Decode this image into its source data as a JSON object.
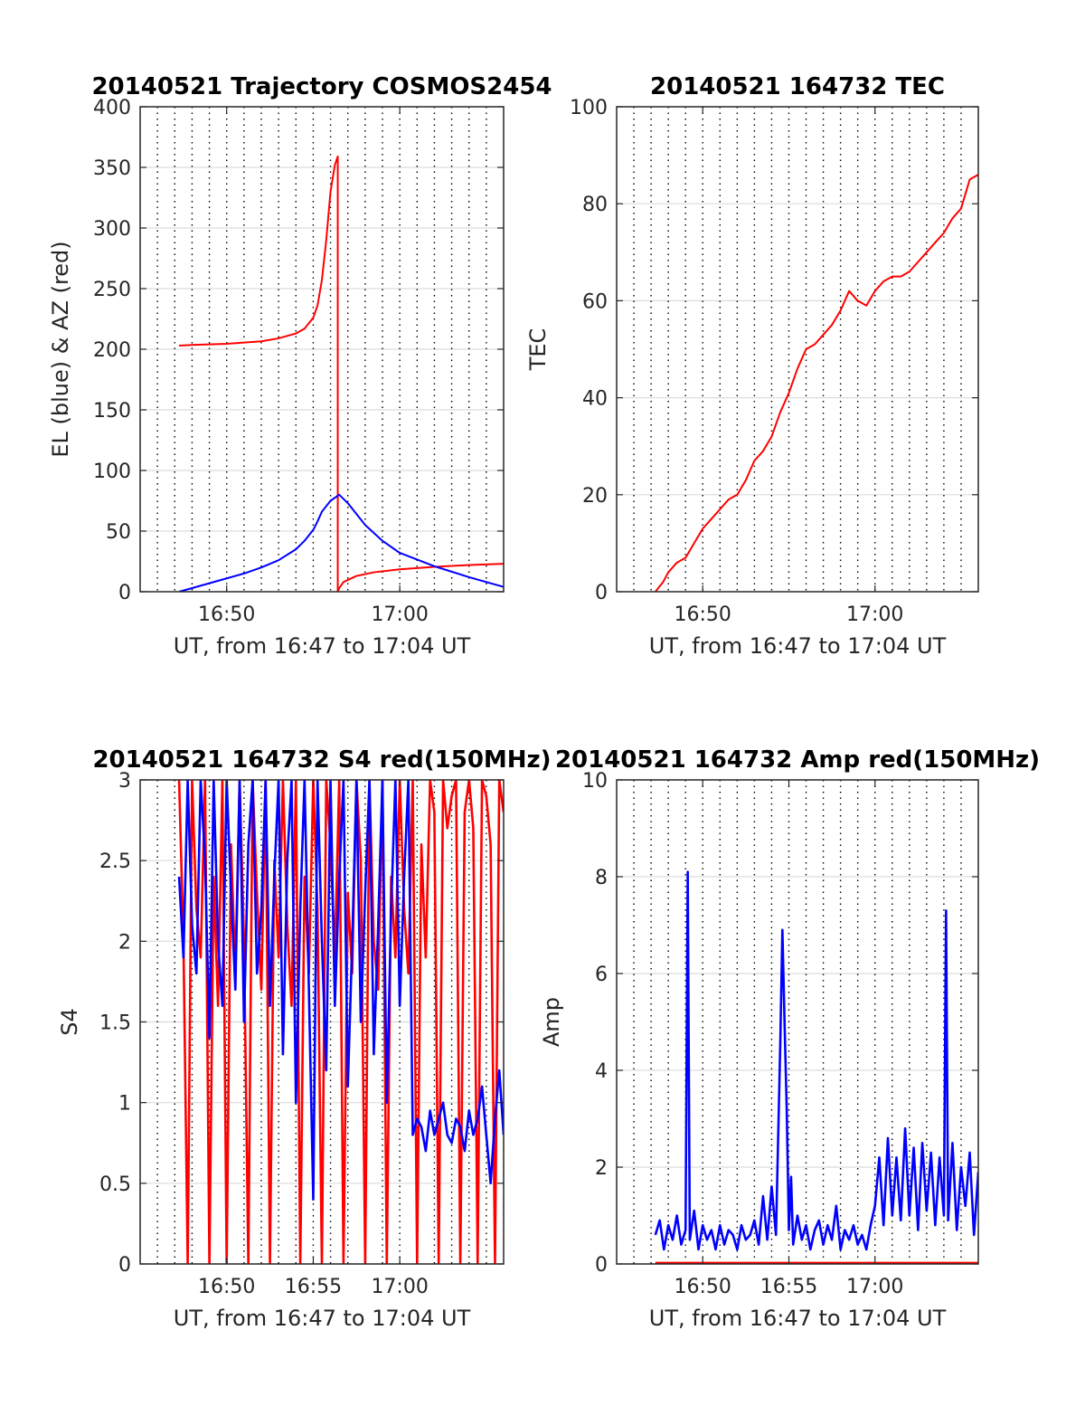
{
  "chart_data": [
    {
      "type": "line",
      "title": "20140521 Trajectory COSMOS2454",
      "xlabel": "UT, from 16:47 to 17:04 UT",
      "ylabel": "EL (blue) & AZ (red)",
      "xlim": [
        16.75,
        17.1
      ],
      "ylim": [
        0,
        400
      ],
      "xticks": [
        {
          "value": 16.8333,
          "label": "16:50"
        },
        {
          "value": 17.0,
          "label": "17:00"
        }
      ],
      "yticks": [
        {
          "value": 0,
          "label": "0"
        },
        {
          "value": 50,
          "label": "50"
        },
        {
          "value": 100,
          "label": "100"
        },
        {
          "value": 150,
          "label": "150"
        },
        {
          "value": 200,
          "label": "200"
        },
        {
          "value": 250,
          "label": "250"
        },
        {
          "value": 300,
          "label": "300"
        },
        {
          "value": 350,
          "label": "350"
        },
        {
          "value": 400,
          "label": "400"
        }
      ],
      "grid": true,
      "series": [
        {
          "color": "#ff0000",
          "x": [
            16.7875,
            16.8,
            16.8333,
            16.8667,
            16.8833,
            16.9,
            16.9083,
            16.9167,
            16.9208,
            16.925,
            16.9292,
            16.9333,
            16.9375,
            16.9403,
            16.9403,
            16.9417,
            16.9458,
            16.9583,
            16.975,
            17.0,
            17.0333,
            17.0667,
            17.1
          ],
          "y": [
            203,
            203.5,
            204.5,
            206.5,
            209,
            213,
            217,
            226,
            236,
            257,
            290,
            330,
            352,
            359,
            0,
            3,
            8,
            13,
            16,
            18.5,
            20.5,
            22,
            23
          ]
        },
        {
          "color": "#0000ff",
          "x": [
            16.7875,
            16.8,
            16.8167,
            16.8333,
            16.85,
            16.8667,
            16.8833,
            16.9,
            16.9083,
            16.9167,
            16.9208,
            16.925,
            16.9333,
            16.9417,
            16.95,
            16.9667,
            16.9833,
            17.0,
            17.0333,
            17.0667,
            17.1
          ],
          "y": [
            0,
            3,
            7,
            11,
            15,
            20,
            26,
            35,
            42,
            51,
            58,
            66,
            75,
            80,
            73,
            55,
            42,
            32,
            21,
            12,
            4
          ]
        }
      ]
    },
    {
      "type": "line",
      "title": "20140521 164732 TEC",
      "xlabel": "UT, from 16:47 to 17:04 UT",
      "ylabel": "TEC",
      "xlim": [
        16.75,
        17.1
      ],
      "ylim": [
        0,
        100
      ],
      "xticks": [
        {
          "value": 16.8333,
          "label": "16:50"
        },
        {
          "value": 17.0,
          "label": "17:00"
        }
      ],
      "yticks": [
        {
          "value": 0,
          "label": "0"
        },
        {
          "value": 20,
          "label": "20"
        },
        {
          "value": 40,
          "label": "40"
        },
        {
          "value": 60,
          "label": "60"
        },
        {
          "value": 80,
          "label": "80"
        },
        {
          "value": 100,
          "label": "100"
        }
      ],
      "grid": true,
      "series": [
        {
          "color": "#ff0000",
          "x": [
            16.7875,
            16.795,
            16.8,
            16.8083,
            16.8167,
            16.825,
            16.8333,
            16.8417,
            16.85,
            16.8583,
            16.8667,
            16.875,
            16.8833,
            16.8917,
            16.9,
            16.9083,
            16.9167,
            16.925,
            16.9333,
            16.9417,
            16.95,
            16.9583,
            16.9667,
            16.975,
            16.9833,
            16.9917,
            17.0,
            17.0083,
            17.0167,
            17.025,
            17.0333,
            17.0417,
            17.05,
            17.0583,
            17.0667,
            17.075,
            17.0833,
            17.0917,
            17.1
          ],
          "y": [
            0,
            2,
            4,
            6,
            7,
            10,
            13,
            15,
            17,
            19,
            20,
            23,
            27,
            29,
            32,
            37,
            41,
            46,
            50,
            51,
            53,
            55,
            58,
            62,
            60,
            59,
            62,
            64,
            65,
            65,
            66,
            68,
            70,
            72,
            74,
            77,
            79,
            85,
            86
          ]
        }
      ]
    },
    {
      "type": "line",
      "title": "20140521 164732 S4 red(150MHz)",
      "xlabel": "UT, from 16:47 to 17:04 UT",
      "ylabel": "S4",
      "xlim": [
        16.75,
        17.1
      ],
      "ylim": [
        0,
        3
      ],
      "xticks": [
        {
          "value": 16.8333,
          "label": "16:50"
        },
        {
          "value": 16.9167,
          "label": "16:55"
        },
        {
          "value": 17.0,
          "label": "17:00"
        }
      ],
      "yticks": [
        {
          "value": 0,
          "label": "0"
        },
        {
          "value": 0.5,
          "label": "0.5"
        },
        {
          "value": 1,
          "label": "1"
        },
        {
          "value": 1.5,
          "label": "1.5"
        },
        {
          "value": 2,
          "label": "2"
        },
        {
          "value": 2.5,
          "label": "2.5"
        },
        {
          "value": 3,
          "label": "3"
        }
      ],
      "grid": true,
      "series": [
        {
          "color": "#ff0000",
          "x": [
            16.7875,
            16.7917,
            16.7958,
            16.8,
            16.8042,
            16.8083,
            16.8125,
            16.8167,
            16.8208,
            16.825,
            16.8292,
            16.8333,
            16.8375,
            16.8417,
            16.8458,
            16.85,
            16.8542,
            16.8583,
            16.8625,
            16.8667,
            16.8708,
            16.875,
            16.8792,
            16.8833,
            16.8875,
            16.8917,
            16.8958,
            16.9,
            16.9042,
            16.9083,
            16.9125,
            16.9167,
            16.9208,
            16.925,
            16.9292,
            16.9333,
            16.9375,
            16.9417,
            16.9458,
            16.95,
            16.9542,
            16.9583,
            16.9625,
            16.9667,
            16.9708,
            16.975,
            16.9792,
            16.9833,
            16.9875,
            16.9917,
            16.9958,
            17.0,
            17.0042,
            17.0083,
            17.0125,
            17.0167,
            17.0208,
            17.025,
            17.0292,
            17.0333,
            17.0375,
            17.0417,
            17.0458,
            17.05,
            17.0542,
            17.0583,
            17.0625,
            17.0667,
            17.0708,
            17.075,
            17.0792,
            17.0833,
            17.0875,
            17.0917,
            17.0958,
            17.1
          ],
          "y": [
            3,
            2.0,
            0.0,
            3,
            2.2,
            1.9,
            3,
            0.0,
            2.4,
            1.6,
            3,
            0.0,
            2.6,
            1.8,
            3,
            2.0,
            0.0,
            3,
            2.3,
            1.7,
            3,
            0.0,
            2.5,
            1.9,
            3,
            2.1,
            1.6,
            3,
            0.0,
            2.4,
            1.8,
            3,
            2.2,
            0.0,
            3,
            2.6,
            1.9,
            3,
            0.0,
            2.3,
            1.8,
            3,
            2.5,
            0.0,
            3,
            2.0,
            1.7,
            3,
            0.0,
            2.4,
            1.9,
            3,
            2.2,
            1.8,
            3,
            0.0,
            2.6,
            1.9,
            3,
            2.8,
            0.0,
            3,
            2.7,
            2.9,
            3,
            0.0,
            2.8,
            3,
            2.7,
            0.0,
            3,
            2.9,
            2.6,
            0.0,
            3,
            2.8
          ]
        },
        {
          "color": "#0000ff",
          "x": [
            16.7875,
            16.7917,
            16.7958,
            16.8,
            16.8042,
            16.8083,
            16.8125,
            16.8167,
            16.8208,
            16.825,
            16.8292,
            16.8333,
            16.8375,
            16.8417,
            16.8458,
            16.85,
            16.8542,
            16.8583,
            16.8625,
            16.8667,
            16.8708,
            16.875,
            16.8792,
            16.8833,
            16.8875,
            16.8917,
            16.8958,
            16.9,
            16.9042,
            16.9083,
            16.9125,
            16.9167,
            16.9208,
            16.925,
            16.9292,
            16.9333,
            16.9375,
            16.9417,
            16.9458,
            16.95,
            16.9542,
            16.9583,
            16.9625,
            16.9667,
            16.9708,
            16.975,
            16.9792,
            16.9833,
            16.9875,
            16.9917,
            16.9958,
            17.0,
            17.0042,
            17.0083,
            17.0125,
            17.0167,
            17.0208,
            17.025,
            17.0292,
            17.0333,
            17.0375,
            17.0417,
            17.0458,
            17.05,
            17.0542,
            17.0583,
            17.0625,
            17.0667,
            17.0708,
            17.075,
            17.0792,
            17.0833,
            17.0875,
            17.0917,
            17.0958,
            17.1
          ],
          "y": [
            2.4,
            1.9,
            3,
            2.1,
            1.8,
            3,
            2.5,
            1.4,
            3,
            2.0,
            1.6,
            3,
            2.3,
            1.7,
            3,
            1.5,
            2.6,
            3,
            1.8,
            2.2,
            3,
            1.6,
            2.4,
            3,
            1.3,
            2.5,
            3,
            1.0,
            2.2,
            3,
            1.7,
            0.4,
            3,
            2.0,
            1.2,
            3,
            1.6,
            2.4,
            3,
            1.1,
            2.0,
            3,
            1.5,
            2.3,
            3,
            1.3,
            2.1,
            3,
            1.0,
            2.2,
            3,
            1.6,
            2.4,
            3,
            0.8,
            0.9,
            0.85,
            0.7,
            0.95,
            0.8,
            0.9,
            1.0,
            0.8,
            0.75,
            0.9,
            0.85,
            0.7,
            0.95,
            0.8,
            0.9,
            1.1,
            0.8,
            0.5,
            0.9,
            1.2,
            0.8
          ]
        }
      ]
    },
    {
      "type": "line",
      "title": "20140521 164732 Amp red(150MHz)",
      "xlabel": "UT, from 16:47 to 17:04 UT",
      "ylabel": "Amp",
      "xlim": [
        16.75,
        17.1
      ],
      "ylim": [
        0,
        10
      ],
      "xticks": [
        {
          "value": 16.8333,
          "label": "16:50"
        },
        {
          "value": 16.9167,
          "label": "16:55"
        },
        {
          "value": 17.0,
          "label": "17:00"
        }
      ],
      "yticks": [
        {
          "value": 0,
          "label": "0"
        },
        {
          "value": 2,
          "label": "2"
        },
        {
          "value": 4,
          "label": "4"
        },
        {
          "value": 6,
          "label": "6"
        },
        {
          "value": 8,
          "label": "8"
        },
        {
          "value": 10,
          "label": "10"
        }
      ],
      "grid": true,
      "series": [
        {
          "color": "#ff0000",
          "x": [
            16.7875,
            17.1
          ],
          "y": [
            0.02,
            0.02
          ]
        },
        {
          "color": "#0000ff",
          "x": [
            16.7875,
            16.7917,
            16.7958,
            16.8,
            16.8042,
            16.8083,
            16.8125,
            16.8167,
            16.8188,
            16.8208,
            16.825,
            16.8292,
            16.8333,
            16.8375,
            16.8417,
            16.8458,
            16.85,
            16.8542,
            16.8583,
            16.8625,
            16.8667,
            16.8708,
            16.875,
            16.8792,
            16.8833,
            16.8875,
            16.8917,
            16.8958,
            16.9,
            16.9042,
            16.9083,
            16.9104,
            16.9125,
            16.9146,
            16.9167,
            16.9188,
            16.9208,
            16.925,
            16.9292,
            16.9333,
            16.9375,
            16.9417,
            16.9458,
            16.95,
            16.9542,
            16.9583,
            16.9625,
            16.9667,
            16.9708,
            16.975,
            16.9792,
            16.9833,
            16.9875,
            16.9917,
            16.9958,
            17.0,
            17.0042,
            17.0083,
            17.0125,
            17.0167,
            17.0208,
            17.025,
            17.0292,
            17.0333,
            17.0375,
            17.0417,
            17.0458,
            17.05,
            17.0542,
            17.0583,
            17.0625,
            17.0667,
            17.0688,
            17.0708,
            17.075,
            17.0792,
            17.0833,
            17.0875,
            17.0917,
            17.0958,
            17.1
          ],
          "y": [
            0.6,
            0.9,
            0.3,
            0.8,
            0.5,
            1.0,
            0.4,
            0.7,
            8.1,
            0.5,
            1.1,
            0.3,
            0.8,
            0.5,
            0.7,
            0.3,
            0.8,
            0.4,
            0.7,
            0.6,
            0.3,
            0.8,
            0.5,
            0.6,
            0.9,
            0.4,
            1.4,
            0.5,
            1.6,
            0.6,
            4.5,
            6.9,
            5.0,
            3.2,
            0.7,
            1.8,
            0.4,
            1.0,
            0.5,
            0.8,
            0.3,
            0.7,
            0.9,
            0.4,
            0.8,
            0.5,
            1.2,
            0.3,
            0.7,
            0.5,
            0.8,
            0.4,
            0.6,
            0.3,
            0.8,
            1.2,
            2.2,
            0.8,
            2.6,
            1.0,
            2.2,
            0.9,
            2.8,
            1.0,
            2.4,
            0.7,
            2.5,
            1.1,
            2.3,
            0.8,
            2.2,
            1.0,
            7.3,
            0.9,
            2.5,
            0.7,
            2.0,
            1.2,
            2.3,
            0.6,
            1.9
          ]
        }
      ]
    }
  ]
}
